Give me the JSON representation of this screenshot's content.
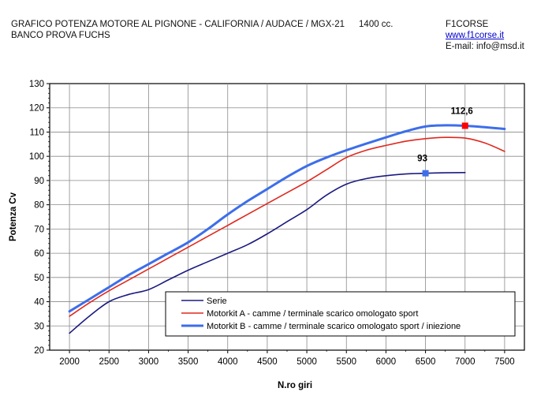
{
  "header": {
    "title_line1": "GRAFICO POTENZA MOTORE AL PIGNONE - CALIFORNIA / AUDACE / MGX-21",
    "displacement": "1400 cc.",
    "title_line2": "BANCO PROVA FUCHS",
    "company": "F1CORSE",
    "website": "www.f1corse.it",
    "email": "E-mail: info@msd.it"
  },
  "chart_data": {
    "type": "line",
    "title": "GRAFICO POTENZA MOTORE AL PIGNONE - CALIFORNIA / AUDACE / MGX-21",
    "xlabel": "N.ro giri",
    "ylabel": "Potenza Cv",
    "xlim": [
      1750,
      7750
    ],
    "ylim": [
      20,
      130
    ],
    "xticks": [
      2000,
      2500,
      3000,
      3500,
      4000,
      4500,
      5000,
      5500,
      6000,
      6500,
      7000,
      7500
    ],
    "yticks": [
      20,
      30,
      40,
      50,
      60,
      70,
      80,
      90,
      100,
      110,
      120,
      130
    ],
    "grid": true,
    "legend_position": "bottom-right",
    "series": [
      {
        "name": "Serie",
        "color": "#1a1a80",
        "x": [
          2000,
          2250,
          2500,
          2750,
          3000,
          3250,
          3500,
          3750,
          4000,
          4250,
          4500,
          4750,
          5000,
          5250,
          5500,
          5750,
          6000,
          6250,
          6500,
          6750,
          7000
        ],
        "y": [
          27,
          34,
          40,
          43,
          45,
          49,
          53,
          56.5,
          60,
          63.5,
          68,
          73,
          78,
          84,
          88.5,
          90.8,
          92,
          92.7,
          93,
          93.2,
          93.3
        ]
      },
      {
        "name": "Motorkit A  - camme / terminale scarico omologato sport",
        "color": "#e0281e",
        "x": [
          2000,
          2250,
          2500,
          2750,
          3000,
          3250,
          3500,
          3750,
          4000,
          4250,
          4500,
          4750,
          5000,
          5250,
          5500,
          5750,
          6000,
          6250,
          6500,
          6750,
          7000,
          7250,
          7500
        ],
        "y": [
          34,
          39.5,
          44.5,
          49,
          53.5,
          58,
          62.5,
          67,
          71.5,
          76,
          80.5,
          85,
          89.5,
          94.5,
          99.5,
          102.5,
          104.5,
          106.2,
          107.3,
          107.8,
          107.5,
          105.5,
          102
        ]
      },
      {
        "name": "Motorkit B -  camme / terminale scarico omologato sport / iniezione",
        "color": "#3d6eea",
        "x": [
          2000,
          2250,
          2500,
          2750,
          3000,
          3250,
          3500,
          3750,
          4000,
          4250,
          4500,
          4750,
          5000,
          5250,
          5500,
          5750,
          6000,
          6250,
          6500,
          6750,
          7000,
          7250,
          7500
        ],
        "y": [
          36,
          41,
          46,
          51,
          55.5,
          60,
          64.5,
          70,
          76,
          81.5,
          86.5,
          91.5,
          96,
          99.5,
          102.5,
          105.2,
          107.8,
          110.3,
          112.3,
          112.8,
          112.6,
          112,
          111.3
        ]
      }
    ],
    "annotations": [
      {
        "text": "112,6",
        "x": 7000,
        "y": 112.6,
        "color": "#ff0000"
      },
      {
        "text": "93",
        "x": 6500,
        "y": 93,
        "color": "#3d6eea"
      }
    ]
  }
}
